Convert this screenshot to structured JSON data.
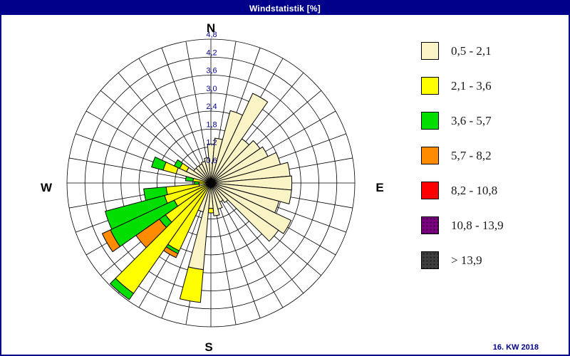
{
  "window": {
    "title": "Windstatistik [%]",
    "footer": "16. KW 2018",
    "titlebar_color": "#00008B",
    "background_color": "#FFFFFF"
  },
  "compass": {
    "north": "N",
    "east": "E",
    "south": "S",
    "west": "W"
  },
  "chart_data": {
    "type": "wind-rose",
    "title": "Windstatistik [%]",
    "units": "%",
    "sectors": 36,
    "sector_width_deg": 10,
    "ring_step": 0.6,
    "ring_max": 4.8,
    "ring_labels": [
      "0,6",
      "1,2",
      "1,8",
      "2,4",
      "3,0",
      "3,6",
      "4,2",
      "4,8"
    ],
    "grid_color": "#000000",
    "axis_label_color": "#00008B",
    "legend_position": "right",
    "legend": [
      {
        "label": "0,5 - 2,1",
        "color": "#FAF3C6",
        "dotted": false
      },
      {
        "label": "2,1 - 3,6",
        "color": "#FFFF00",
        "dotted": false
      },
      {
        "label": "3,6 - 5,7",
        "color": "#00DF00",
        "dotted": false
      },
      {
        "label": "5,7 - 8,2",
        "color": "#FF8C00",
        "dotted": false
      },
      {
        "label": "8,2 - 10,8",
        "color": "#FF0000",
        "dotted": false
      },
      {
        "label": "10,8 - 13,9",
        "color": "#7A0080",
        "dotted": true
      },
      {
        "label": "> 13,9",
        "color": "#3F3F3F",
        "dotted": true
      }
    ],
    "petals": [
      {
        "dir": 0,
        "segments": [
          {
            "class": 0,
            "to": 1.3
          }
        ]
      },
      {
        "dir": 10,
        "segments": [
          {
            "class": 0,
            "to": 1.5
          }
        ]
      },
      {
        "dir": 20,
        "segments": [
          {
            "class": 0,
            "to": 2.5
          }
        ]
      },
      {
        "dir": 30,
        "segments": [
          {
            "class": 0,
            "to": 3.3
          }
        ]
      },
      {
        "dir": 40,
        "segments": [
          {
            "class": 0,
            "to": 1.8
          }
        ]
      },
      {
        "dir": 50,
        "segments": [
          {
            "class": 0,
            "to": 2.0
          }
        ]
      },
      {
        "dir": 60,
        "segments": [
          {
            "class": 0,
            "to": 2.1
          }
        ]
      },
      {
        "dir": 70,
        "segments": [
          {
            "class": 0,
            "to": 2.4
          }
        ]
      },
      {
        "dir": 80,
        "segments": [
          {
            "class": 0,
            "to": 2.65
          }
        ]
      },
      {
        "dir": 90,
        "segments": [
          {
            "class": 0,
            "to": 2.7
          }
        ]
      },
      {
        "dir": 100,
        "segments": [
          {
            "class": 0,
            "to": 2.7
          }
        ]
      },
      {
        "dir": 110,
        "segments": [
          {
            "class": 0,
            "to": 2.35
          }
        ]
      },
      {
        "dir": 120,
        "segments": [
          {
            "class": 0,
            "to": 2.95
          }
        ]
      },
      {
        "dir": 130,
        "segments": [
          {
            "class": 0,
            "to": 2.75
          }
        ]
      },
      {
        "dir": 140,
        "segments": [
          {
            "class": 0,
            "to": 0.8
          }
        ]
      },
      {
        "dir": 150,
        "segments": [
          {
            "class": 0,
            "to": 0.7
          }
        ]
      },
      {
        "dir": 160,
        "segments": [
          {
            "class": 0,
            "to": 0.9
          }
        ]
      },
      {
        "dir": 170,
        "segments": [
          {
            "class": 0,
            "to": 1.1
          }
        ]
      },
      {
        "dir": 180,
        "segments": [
          {
            "class": 0,
            "to": 0.85
          },
          {
            "class": 1,
            "to": 1.0
          }
        ]
      },
      {
        "dir": 190,
        "segments": [
          {
            "class": 0,
            "to": 2.9
          },
          {
            "class": 1,
            "to": 4.0
          }
        ]
      },
      {
        "dir": 200,
        "segments": [
          {
            "class": 0,
            "to": 1.0
          }
        ]
      },
      {
        "dir": 210,
        "segments": [
          {
            "class": 1,
            "to": 2.5
          },
          {
            "class": 2,
            "to": 2.6
          },
          {
            "class": 3,
            "to": 2.75
          }
        ]
      },
      {
        "dir": 220,
        "segments": [
          {
            "class": 1,
            "to": 4.5
          },
          {
            "class": 2,
            "to": 4.75
          }
        ]
      },
      {
        "dir": 230,
        "segments": [
          {
            "class": 1,
            "to": 1.85
          },
          {
            "class": 2,
            "to": 2.1
          },
          {
            "class": 3,
            "to": 3.05
          }
        ]
      },
      {
        "dir": 240,
        "segments": [
          {
            "class": 1,
            "to": 1.35
          },
          {
            "class": 2,
            "to": 3.7
          },
          {
            "class": 3,
            "to": 4.0
          }
        ]
      },
      {
        "dir": 250,
        "segments": [
          {
            "class": 1,
            "to": 1.6
          },
          {
            "class": 2,
            "to": 3.65
          }
        ]
      },
      {
        "dir": 260,
        "segments": [
          {
            "class": 0,
            "to": 0.4
          },
          {
            "class": 1,
            "to": 1.5
          },
          {
            "class": 2,
            "to": 2.25
          }
        ]
      },
      {
        "dir": 270,
        "segments": [
          {
            "class": 1,
            "to": 0.4
          },
          {
            "class": 2,
            "to": 0.55
          }
        ]
      },
      {
        "dir": 280,
        "segments": [
          {
            "class": 1,
            "to": 0.6
          },
          {
            "class": 2,
            "to": 0.85
          }
        ]
      },
      {
        "dir": 290,
        "segments": [
          {
            "class": 0,
            "to": 1.2
          },
          {
            "class": 1,
            "to": 1.65
          },
          {
            "class": 2,
            "to": 2.05
          }
        ]
      },
      {
        "dir": 300,
        "segments": [
          {
            "class": 0,
            "to": 0.9
          },
          {
            "class": 1,
            "to": 1.15
          },
          {
            "class": 2,
            "to": 1.35
          }
        ]
      },
      {
        "dir": 310,
        "segments": [
          {
            "class": 0,
            "to": 0.7
          }
        ]
      },
      {
        "dir": 320,
        "segments": [
          {
            "class": 0,
            "to": 0.7
          }
        ]
      },
      {
        "dir": 330,
        "segments": [
          {
            "class": 0,
            "to": 0.7
          }
        ]
      },
      {
        "dir": 340,
        "segments": [
          {
            "class": 0,
            "to": 0.75
          }
        ]
      },
      {
        "dir": 350,
        "segments": [
          {
            "class": 0,
            "to": 0.85
          }
        ]
      }
    ]
  }
}
